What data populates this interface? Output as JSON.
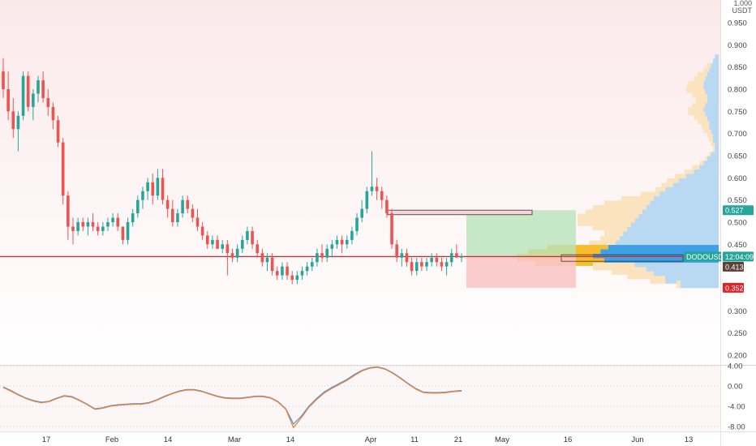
{
  "header": {
    "scale_top_label": "1.000",
    "currency_label": "USDT"
  },
  "colors": {
    "up": "#26a69a",
    "down": "#ef5350",
    "background_top": "#fbe9ea",
    "background_bottom": "#ffffff",
    "level_line": "#e0232b",
    "target_zone": "#b9e3b9",
    "stop_zone": "#f9c6c6",
    "resistance_box": "#f6d4da",
    "vp_up": "#b9d9f2",
    "vp_down": "#fae3be",
    "vp_up_value_area": "#3ea0e6",
    "vp_down_value_area": "#f8bd2d",
    "osc_blue": "#4a90e2",
    "osc_orange": "#f0812b"
  },
  "price_axis": {
    "ticks": [
      "0.950",
      "0.900",
      "0.850",
      "0.800",
      "0.750",
      "0.700",
      "0.650",
      "0.600",
      "0.550",
      "0.500",
      "0.450",
      "0.300",
      "0.250",
      "0.200"
    ],
    "labels": [
      {
        "text": "0.527",
        "price": 0.527,
        "color": "#26a69a"
      },
      {
        "text": "DODOUSDT",
        "price": 0.4225,
        "color": "#26a69a"
      },
      {
        "text": "12:04:09",
        "price": 0.4225,
        "color": "#26a69a"
      },
      {
        "text": "0.413",
        "price": 0.4125,
        "color": "#5d4037"
      },
      {
        "text": "0.352",
        "price": 0.352,
        "color": "#e0232b"
      }
    ]
  },
  "osc_axis": {
    "ticks": [
      "4.00",
      "0.00",
      "-4.00",
      "-8.00"
    ]
  },
  "time_axis": {
    "labels": [
      "17",
      "Feb",
      "14",
      "Mar",
      "14",
      "Apr",
      "11",
      "21",
      "May",
      "16",
      "Jun",
      "13"
    ]
  },
  "chart_data": [
    {
      "type": "candlestick",
      "symbol": "DODOUSDT",
      "x_labels": [
        "17",
        "Feb",
        "14",
        "Mar",
        "14",
        "Apr",
        "11",
        "21",
        "May",
        "16",
        "Jun",
        "13"
      ],
      "ylim": [
        0.175,
        1.0
      ],
      "last_price": 0.4225,
      "horizontal_level": 0.4225,
      "position": {
        "entry": 0.4225,
        "target": 0.527,
        "stop": 0.352
      },
      "resistance_zone": [
        0.517,
        0.527
      ],
      "ohlc": [
        [
          0.84,
          0.87,
          0.78,
          0.8
        ],
        [
          0.8,
          0.84,
          0.73,
          0.75
        ],
        [
          0.75,
          0.78,
          0.69,
          0.71
        ],
        [
          0.71,
          0.75,
          0.66,
          0.74
        ],
        [
          0.74,
          0.84,
          0.73,
          0.83
        ],
        [
          0.83,
          0.84,
          0.75,
          0.76
        ],
        [
          0.76,
          0.8,
          0.73,
          0.79
        ],
        [
          0.79,
          0.83,
          0.77,
          0.82
        ],
        [
          0.82,
          0.84,
          0.77,
          0.78
        ],
        [
          0.78,
          0.8,
          0.74,
          0.76
        ],
        [
          0.76,
          0.77,
          0.71,
          0.73
        ],
        [
          0.73,
          0.74,
          0.67,
          0.68
        ],
        [
          0.68,
          0.69,
          0.54,
          0.56
        ],
        [
          0.56,
          0.57,
          0.46,
          0.49
        ],
        [
          0.49,
          0.51,
          0.45,
          0.48
        ],
        [
          0.48,
          0.51,
          0.47,
          0.5
        ],
        [
          0.5,
          0.51,
          0.48,
          0.49
        ],
        [
          0.49,
          0.51,
          0.47,
          0.5
        ],
        [
          0.5,
          0.52,
          0.48,
          0.49
        ],
        [
          0.49,
          0.5,
          0.47,
          0.48
        ],
        [
          0.48,
          0.5,
          0.47,
          0.49
        ],
        [
          0.49,
          0.51,
          0.48,
          0.5
        ],
        [
          0.5,
          0.52,
          0.49,
          0.51
        ],
        [
          0.51,
          0.52,
          0.48,
          0.49
        ],
        [
          0.49,
          0.49,
          0.45,
          0.46
        ],
        [
          0.46,
          0.51,
          0.45,
          0.5
        ],
        [
          0.5,
          0.53,
          0.49,
          0.52
        ],
        [
          0.52,
          0.56,
          0.51,
          0.55
        ],
        [
          0.55,
          0.58,
          0.53,
          0.57
        ],
        [
          0.57,
          0.6,
          0.55,
          0.59
        ],
        [
          0.59,
          0.61,
          0.54,
          0.56
        ],
        [
          0.56,
          0.62,
          0.55,
          0.6
        ],
        [
          0.6,
          0.62,
          0.54,
          0.55
        ],
        [
          0.55,
          0.56,
          0.51,
          0.53
        ],
        [
          0.53,
          0.55,
          0.49,
          0.5
        ],
        [
          0.5,
          0.53,
          0.49,
          0.52
        ],
        [
          0.52,
          0.56,
          0.51,
          0.55
        ],
        [
          0.55,
          0.56,
          0.52,
          0.53
        ],
        [
          0.53,
          0.54,
          0.5,
          0.51
        ],
        [
          0.51,
          0.53,
          0.48,
          0.49
        ],
        [
          0.49,
          0.5,
          0.46,
          0.47
        ],
        [
          0.47,
          0.48,
          0.44,
          0.45
        ],
        [
          0.45,
          0.47,
          0.44,
          0.46
        ],
        [
          0.46,
          0.47,
          0.44,
          0.44
        ],
        [
          0.44,
          0.46,
          0.43,
          0.45
        ],
        [
          0.45,
          0.46,
          0.38,
          0.43
        ],
        [
          0.43,
          0.44,
          0.41,
          0.42
        ],
        [
          0.42,
          0.45,
          0.41,
          0.44
        ],
        [
          0.44,
          0.47,
          0.43,
          0.46
        ],
        [
          0.46,
          0.49,
          0.45,
          0.48
        ],
        [
          0.48,
          0.49,
          0.44,
          0.45
        ],
        [
          0.45,
          0.46,
          0.42,
          0.43
        ],
        [
          0.43,
          0.44,
          0.4,
          0.41
        ],
        [
          0.41,
          0.43,
          0.39,
          0.42
        ],
        [
          0.42,
          0.43,
          0.38,
          0.39
        ],
        [
          0.39,
          0.4,
          0.37,
          0.38
        ],
        [
          0.38,
          0.41,
          0.37,
          0.4
        ],
        [
          0.4,
          0.41,
          0.37,
          0.38
        ],
        [
          0.38,
          0.39,
          0.36,
          0.37
        ],
        [
          0.37,
          0.39,
          0.36,
          0.38
        ],
        [
          0.38,
          0.4,
          0.37,
          0.39
        ],
        [
          0.39,
          0.41,
          0.38,
          0.4
        ],
        [
          0.4,
          0.42,
          0.39,
          0.41
        ],
        [
          0.41,
          0.44,
          0.4,
          0.43
        ],
        [
          0.43,
          0.45,
          0.41,
          0.42
        ],
        [
          0.42,
          0.45,
          0.41,
          0.44
        ],
        [
          0.44,
          0.46,
          0.42,
          0.45
        ],
        [
          0.45,
          0.47,
          0.44,
          0.46
        ],
        [
          0.46,
          0.47,
          0.43,
          0.45
        ],
        [
          0.45,
          0.47,
          0.44,
          0.46
        ],
        [
          0.46,
          0.49,
          0.45,
          0.48
        ],
        [
          0.48,
          0.52,
          0.47,
          0.51
        ],
        [
          0.51,
          0.55,
          0.5,
          0.53
        ],
        [
          0.53,
          0.58,
          0.52,
          0.57
        ],
        [
          0.57,
          0.66,
          0.56,
          0.58
        ],
        [
          0.58,
          0.6,
          0.55,
          0.57
        ],
        [
          0.57,
          0.58,
          0.53,
          0.55
        ],
        [
          0.55,
          0.56,
          0.51,
          0.52
        ],
        [
          0.52,
          0.53,
          0.44,
          0.45
        ],
        [
          0.45,
          0.46,
          0.41,
          0.42
        ],
        [
          0.42,
          0.44,
          0.4,
          0.43
        ],
        [
          0.43,
          0.44,
          0.4,
          0.41
        ],
        [
          0.41,
          0.42,
          0.38,
          0.39
        ],
        [
          0.39,
          0.42,
          0.38,
          0.41
        ],
        [
          0.41,
          0.42,
          0.39,
          0.4
        ],
        [
          0.4,
          0.42,
          0.39,
          0.41
        ],
        [
          0.41,
          0.43,
          0.4,
          0.42
        ],
        [
          0.42,
          0.43,
          0.4,
          0.41
        ],
        [
          0.41,
          0.42,
          0.39,
          0.4
        ],
        [
          0.4,
          0.42,
          0.38,
          0.41
        ],
        [
          0.41,
          0.44,
          0.4,
          0.43
        ],
        [
          0.43,
          0.45,
          0.42,
          0.42
        ],
        [
          0.42,
          0.43,
          0.41,
          0.4225
        ]
      ]
    },
    {
      "type": "line",
      "role": "oscillator",
      "ylim": [
        -9.2,
        4.2
      ],
      "series": [
        {
          "color": "#4a90e2",
          "values": [
            -0.2,
            -0.9,
            -1.7,
            -2.4,
            -2.9,
            -3.2,
            -3.0,
            -2.4,
            -1.9,
            -2.1,
            -2.8,
            -3.6,
            -4.5,
            -4.3,
            -3.9,
            -3.7,
            -3.6,
            -3.5,
            -3.5,
            -3.3,
            -2.8,
            -2.1,
            -1.5,
            -1.0,
            -0.7,
            -0.7,
            -1.0,
            -1.5,
            -2.0,
            -2.3,
            -2.4,
            -2.4,
            -2.2,
            -2.0,
            -2.0,
            -2.3,
            -3.1,
            -4.5,
            -7.5,
            -6.0,
            -4.0,
            -2.5,
            -1.2,
            -0.3,
            0.5,
            1.3,
            2.3,
            3.1,
            3.6,
            3.8,
            3.4,
            2.6,
            1.6,
            0.5,
            -0.5,
            -1.2,
            -1.3,
            -1.3,
            -1.2,
            -1.0,
            -0.9
          ]
        },
        {
          "color": "#f0812b",
          "values": [
            -0.3,
            -1.0,
            -1.8,
            -2.5,
            -3.0,
            -3.3,
            -3.1,
            -2.5,
            -2.0,
            -2.2,
            -2.9,
            -3.7,
            -4.6,
            -4.4,
            -4.0,
            -3.8,
            -3.7,
            -3.6,
            -3.6,
            -3.4,
            -2.9,
            -2.2,
            -1.6,
            -1.1,
            -0.8,
            -0.8,
            -1.1,
            -1.6,
            -2.1,
            -2.4,
            -2.5,
            -2.5,
            -2.3,
            -2.1,
            -2.1,
            -2.4,
            -3.2,
            -4.6,
            -8.2,
            -6.3,
            -4.2,
            -2.7,
            -1.4,
            -0.5,
            0.3,
            1.1,
            2.1,
            3.0,
            3.5,
            3.7,
            3.3,
            2.5,
            1.5,
            0.4,
            -0.6,
            -1.3,
            -1.4,
            -1.4,
            -1.3,
            -1.1,
            -1.0
          ]
        }
      ]
    },
    {
      "type": "bar",
      "role": "volume-profile",
      "orientation": "horizontal",
      "price_levels": [
        0.87,
        0.86,
        0.85,
        0.84,
        0.83,
        0.82,
        0.81,
        0.8,
        0.79,
        0.78,
        0.77,
        0.76,
        0.75,
        0.74,
        0.73,
        0.72,
        0.71,
        0.7,
        0.69,
        0.68,
        0.67,
        0.66,
        0.65,
        0.64,
        0.63,
        0.62,
        0.61,
        0.6,
        0.59,
        0.58,
        0.57,
        0.56,
        0.55,
        0.54,
        0.53,
        0.52,
        0.51,
        0.5,
        0.49,
        0.48,
        0.47,
        0.46,
        0.45,
        0.44,
        0.43,
        0.42,
        0.41,
        0.4,
        0.39,
        0.38,
        0.37,
        0.36
      ],
      "series": [
        {
          "name": "up",
          "values": [
            2,
            3,
            4,
            5,
            6,
            7,
            8,
            8,
            7,
            6,
            6,
            7,
            8,
            7,
            6,
            5,
            5,
            4,
            3,
            3,
            2,
            2,
            4,
            6,
            8,
            10,
            13,
            17,
            21,
            24,
            28,
            31,
            34,
            36,
            38,
            40,
            42,
            44,
            46,
            48,
            50,
            52,
            54,
            58,
            62,
            66,
            60,
            44,
            38,
            34,
            28,
            20
          ]
        },
        {
          "name": "down",
          "values": [
            0,
            0,
            2,
            3,
            5,
            6,
            8,
            9,
            7,
            6,
            6,
            7,
            8,
            6,
            5,
            4,
            3,
            2,
            2,
            1,
            1,
            1,
            1,
            1,
            2,
            4,
            5,
            6,
            6,
            6,
            5,
            10,
            17,
            24,
            28,
            30,
            32,
            30,
            20,
            12,
            10,
            10,
            14,
            32,
            38,
            40,
            36,
            22,
            18,
            14,
            8,
            2
          ]
        }
      ]
    }
  ]
}
